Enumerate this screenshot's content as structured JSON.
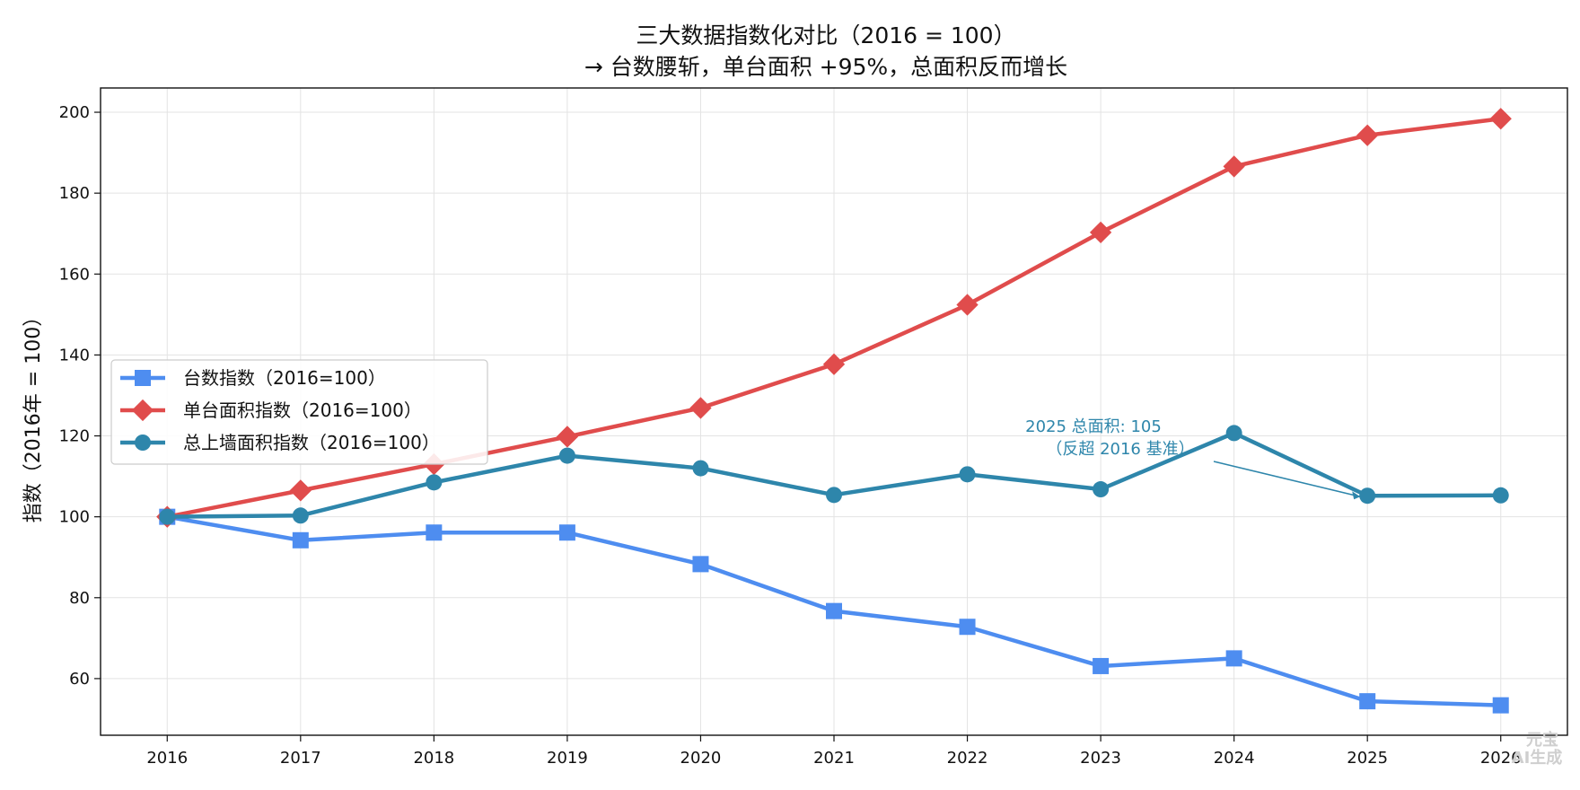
{
  "chart_data": {
    "type": "line",
    "title": "三大数据指数化对比（2016 = 100）",
    "subtitle": "→ 台数腰斩，单台面积 +95%，总面积反而增长",
    "xlabel": "",
    "ylabel": "指数（2016年 = 100）",
    "x": [
      2016,
      2017,
      2018,
      2019,
      2020,
      2021,
      2022,
      2023,
      2024,
      2025,
      2026
    ],
    "xlim": [
      2015.5,
      2026.5
    ],
    "ylim": [
      46,
      206
    ],
    "yticks": [
      60,
      80,
      100,
      120,
      140,
      160,
      180,
      200
    ],
    "grid": true,
    "legend_position": "center-left",
    "series": [
      {
        "name": "台数指数（2016=100）",
        "color": "#4e8df0",
        "marker": "square",
        "values": [
          100,
          94.2,
          96.1,
          96.1,
          88.3,
          76.7,
          72.8,
          63.1,
          65.0,
          54.4,
          53.4
        ]
      },
      {
        "name": "单台面积指数（2016=100）",
        "color": "#e04c4c",
        "marker": "diamond",
        "values": [
          100,
          106.5,
          113.0,
          119.8,
          126.9,
          137.7,
          152.4,
          170.3,
          186.6,
          194.3,
          198.4
        ]
      },
      {
        "name": "总上墙面积指数（2016=100）",
        "color": "#2e86ab",
        "marker": "circle",
        "values": [
          100,
          100.3,
          108.5,
          115.1,
          112.0,
          105.4,
          110.5,
          106.8,
          120.7,
          105.2,
          105.3
        ]
      }
    ],
    "annotation": {
      "line1": "2025 总面积: 105",
      "line2": "（反超 2016 基准）",
      "target_x": 2025,
      "target_y": 105.2,
      "color": "#2e86ab"
    }
  },
  "watermark": {
    "line1": "元宝",
    "line2": "AI生成"
  }
}
